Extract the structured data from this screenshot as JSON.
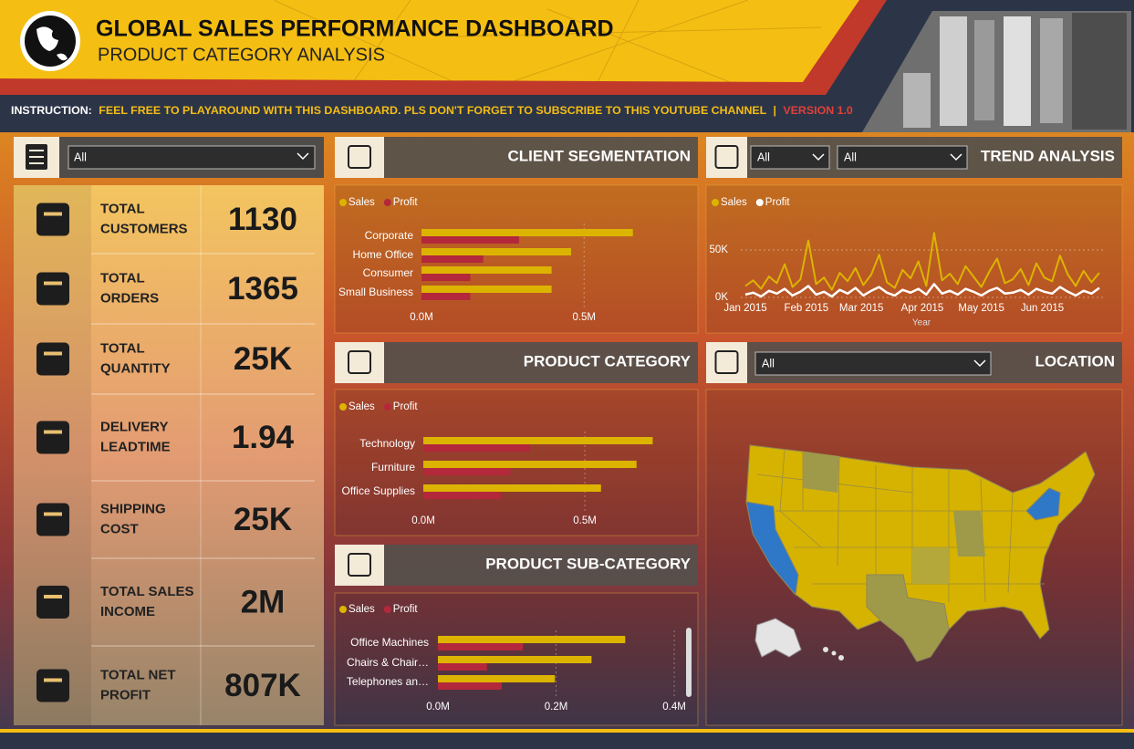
{
  "header": {
    "title": "GLOBAL SALES PERFORMANCE DASHBOARD",
    "subtitle": "PRODUCT CATEGORY ANALYSIS",
    "instruction_label": "INSTRUCTION:",
    "instruction": "FEEL FREE TO PLAYAROUND WITH THIS DASHBOARD. PLS DON'T FORGET TO SUBSCRIBE TO THIS YOUTUBE CHANNEL",
    "separator": "|",
    "version": "VERSION 1.0"
  },
  "filters": {
    "main": "All",
    "trend_1": "All",
    "trend_2": "All",
    "location": "All"
  },
  "panels": {
    "client": "CLIENT SEGMENTATION",
    "trend": "TREND ANALYSIS",
    "category": "PRODUCT CATEGORY",
    "subcategory": "PRODUCT SUB-CATEGORY",
    "location": "LOCATION"
  },
  "kpis": [
    {
      "label": [
        "TOTAL",
        "CUSTOMERS"
      ],
      "value": "1130"
    },
    {
      "label": [
        "TOTAL",
        "ORDERS"
      ],
      "value": "1365"
    },
    {
      "label": [
        "TOTAL",
        "QUANTITY"
      ],
      "value": "25K"
    },
    {
      "label": [
        "DELIVERY",
        "LEADTIME"
      ],
      "value": "1.94"
    },
    {
      "label": [
        "SHIPPING",
        "COST"
      ],
      "value": "25K"
    },
    {
      "label": [
        "TOTAL SALES",
        "INCOME"
      ],
      "value": "2M"
    },
    {
      "label": [
        "TOTAL NET",
        "PROFIT"
      ],
      "value": "807K"
    }
  ],
  "chart_data": [
    {
      "type": "hbar",
      "categories": [
        "Corporate",
        "Home Office",
        "Consumer",
        "Small Business"
      ],
      "series": [
        {
          "name": "Sales",
          "color": "#dcb400",
          "values": [
            650000,
            460000,
            400000,
            400000
          ]
        },
        {
          "name": "Profit",
          "color": "#b3283a",
          "values": [
            300000,
            190000,
            150000,
            150000
          ]
        }
      ],
      "xlim": [
        0,
        850000
      ],
      "xticks": [
        {
          "value": 0,
          "label": "0.0M"
        },
        {
          "value": 500000,
          "label": "0.5M"
        }
      ],
      "grid": true
    },
    {
      "type": "line",
      "x_label": "Year",
      "x": [
        1,
        5,
        9,
        13,
        17,
        21,
        25,
        29,
        33,
        37,
        41,
        45,
        49,
        53,
        57,
        61,
        65,
        69,
        73,
        77,
        81,
        85,
        89,
        93,
        97,
        101,
        105,
        109,
        113,
        117,
        121,
        125,
        129,
        133,
        137,
        141,
        145,
        149,
        153,
        157,
        161,
        165,
        169,
        173,
        177,
        181
      ],
      "series": [
        {
          "name": "Sales",
          "color": "#dcb400",
          "values": [
            12000,
            18000,
            9000,
            22000,
            15000,
            35000,
            11000,
            19000,
            60000,
            14000,
            21000,
            8000,
            26000,
            17000,
            31000,
            13000,
            24000,
            45000,
            16000,
            10000,
            29000,
            20000,
            38000,
            12000,
            68000,
            18000,
            25000,
            14000,
            33000,
            22000,
            11000,
            27000,
            41000,
            15000,
            19000,
            30000,
            13000,
            36000,
            21000,
            17000,
            44000,
            24000,
            12000,
            28000,
            16000,
            26000
          ]
        },
        {
          "name": "Profit",
          "color": "#ffffff",
          "values": [
            3000,
            5000,
            1000,
            7000,
            4000,
            9000,
            2000,
            6000,
            12000,
            3000,
            6000,
            1000,
            8000,
            4000,
            10000,
            2000,
            7000,
            11000,
            5000,
            2000,
            8000,
            5000,
            9000,
            3000,
            14000,
            4000,
            7000,
            3000,
            9000,
            6000,
            2000,
            7000,
            10000,
            4000,
            5000,
            8000,
            3000,
            9000,
            6000,
            4000,
            11000,
            6000,
            2000,
            7000,
            4000,
            10000
          ]
        }
      ],
      "xlim": [
        1,
        181
      ],
      "xticks": [
        {
          "value": 1,
          "label": "Jan 2015"
        },
        {
          "value": 32,
          "label": "Feb 2015"
        },
        {
          "value": 60,
          "label": "Mar 2015"
        },
        {
          "value": 91,
          "label": "Apr 2015"
        },
        {
          "value": 121,
          "label": "May 2015"
        },
        {
          "value": 152,
          "label": "Jun 2015"
        }
      ],
      "ylim": [
        0,
        90000
      ],
      "yticks": [
        {
          "value": 0,
          "label": "0K"
        },
        {
          "value": 50000,
          "label": "50K"
        }
      ],
      "grid": true
    },
    {
      "type": "hbar",
      "categories": [
        "Technology",
        "Furniture",
        "Office Supplies"
      ],
      "series": [
        {
          "name": "Sales",
          "color": "#dcb400",
          "values": [
            710000,
            660000,
            550000
          ]
        },
        {
          "name": "Profit",
          "color": "#b3283a",
          "values": [
            330000,
            270000,
            240000
          ]
        }
      ],
      "xlim": [
        0,
        850000
      ],
      "xticks": [
        {
          "value": 0,
          "label": "0.0M"
        },
        {
          "value": 500000,
          "label": "0.5M"
        }
      ],
      "grid": true
    },
    {
      "type": "hbar",
      "categories": [
        "Office Machines",
        "Chairs & Chair…",
        "Telephones an…"
      ],
      "series": [
        {
          "name": "Sales",
          "color": "#dcb400",
          "values": [
            317000,
            260000,
            198000
          ]
        },
        {
          "name": "Profit",
          "color": "#b3283a",
          "values": [
            144000,
            83000,
            108000
          ]
        }
      ],
      "xlim": [
        0,
        420000
      ],
      "xticks": [
        {
          "value": 0,
          "label": "0.0M"
        },
        {
          "value": 200000,
          "label": "0.2M"
        },
        {
          "value": 400000,
          "label": "0.4M"
        }
      ],
      "grid": true
    }
  ]
}
